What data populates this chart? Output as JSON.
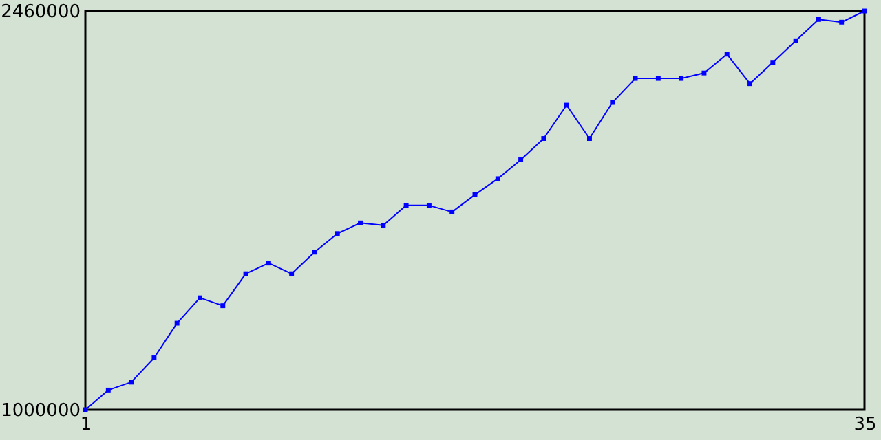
{
  "chart_data": {
    "type": "line",
    "x": [
      1,
      2,
      3,
      4,
      5,
      6,
      7,
      8,
      9,
      10,
      11,
      12,
      13,
      14,
      15,
      16,
      17,
      18,
      19,
      20,
      21,
      22,
      23,
      24,
      25,
      26,
      27,
      28,
      29,
      30,
      31,
      32,
      33,
      34,
      35
    ],
    "series": [
      {
        "color": "#0000ff",
        "values": [
          1000000,
          1072000,
          1101000,
          1190000,
          1317000,
          1410000,
          1381000,
          1498000,
          1537000,
          1498000,
          1577000,
          1645000,
          1684000,
          1675000,
          1748000,
          1748000,
          1724000,
          1787000,
          1846000,
          1915000,
          1993000,
          2115000,
          1993000,
          2125000,
          2213000,
          2213000,
          2213000,
          2233000,
          2302000,
          2194000,
          2272000,
          2351000,
          2429000,
          2419000,
          2460000
        ]
      }
    ],
    "xlim": [
      1,
      35
    ],
    "xticks": [
      1,
      35
    ],
    "ylim": [
      1000000,
      2460000
    ],
    "yticks": [
      1000000,
      2460000
    ],
    "grid": false,
    "marker": "square",
    "line_style": "solid"
  }
}
